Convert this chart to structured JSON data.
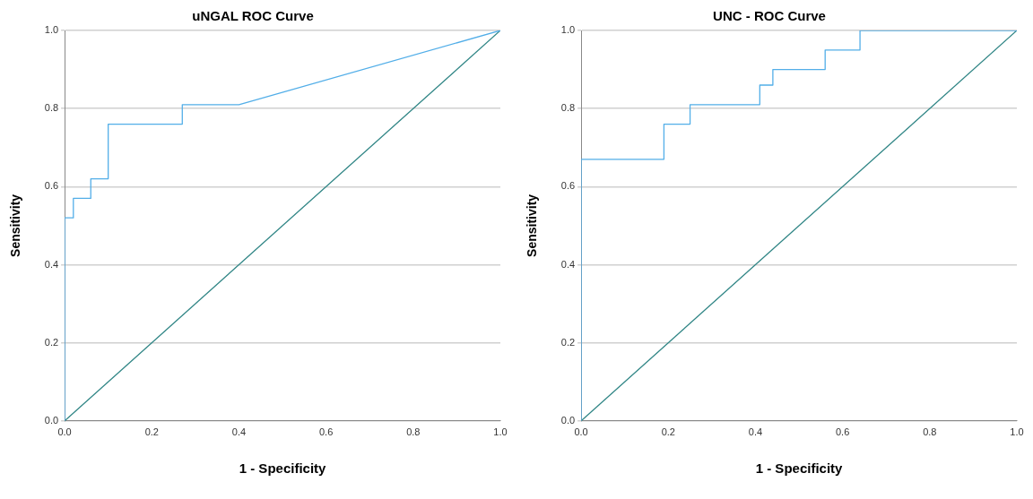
{
  "chart_data": [
    {
      "type": "line",
      "title": "uNGAL ROC Curve",
      "xlabel": "1 - Specificity",
      "ylabel": "Sensitivity",
      "xlim": [
        0,
        1
      ],
      "ylim": [
        0,
        1
      ],
      "xticks": [
        {
          "value": 0,
          "label": "0.0"
        },
        {
          "value": 0.2,
          "label": "0.2"
        },
        {
          "value": 0.4,
          "label": "0.4"
        },
        {
          "value": 0.6,
          "label": "0.6"
        },
        {
          "value": 0.8,
          "label": "0.8"
        },
        {
          "value": 1,
          "label": "1.0"
        }
      ],
      "yticks": [
        {
          "value": 0,
          "label": "0.0"
        },
        {
          "value": 0.2,
          "label": "0.2"
        },
        {
          "value": 0.4,
          "label": "0.4"
        },
        {
          "value": 0.6,
          "label": "0.6"
        },
        {
          "value": 0.8,
          "label": "0.8"
        },
        {
          "value": 1,
          "label": "1.0"
        }
      ],
      "grid": "y",
      "legend": false,
      "marker": "none",
      "line_style": "solid",
      "series": [
        {
          "color": "#52aee8",
          "x": [
            0,
            0,
            0.02,
            0.02,
            0.06,
            0.06,
            0.1,
            0.1,
            0.27,
            0.27,
            0.4,
            1
          ],
          "values": [
            0,
            0.52,
            0.52,
            0.57,
            0.57,
            0.62,
            0.62,
            0.76,
            0.76,
            0.81,
            0.81,
            1
          ]
        },
        {
          "color": "#2f8585",
          "x": [
            0,
            1
          ],
          "values": [
            0,
            1
          ]
        }
      ]
    },
    {
      "type": "line",
      "title": "UNC - ROC Curve",
      "xlabel": "1 - Specificity",
      "ylabel": "Sensitivity",
      "xlim": [
        0,
        1
      ],
      "ylim": [
        0,
        1
      ],
      "xticks": [
        {
          "value": 0,
          "label": "0.0"
        },
        {
          "value": 0.2,
          "label": "0.2"
        },
        {
          "value": 0.4,
          "label": "0.4"
        },
        {
          "value": 0.6,
          "label": "0.6"
        },
        {
          "value": 0.8,
          "label": "0.8"
        },
        {
          "value": 1,
          "label": "1.0"
        }
      ],
      "yticks": [
        {
          "value": 0,
          "label": "0.0"
        },
        {
          "value": 0.2,
          "label": "0.2"
        },
        {
          "value": 0.4,
          "label": "0.4"
        },
        {
          "value": 0.6,
          "label": "0.6"
        },
        {
          "value": 0.8,
          "label": "0.8"
        },
        {
          "value": 1,
          "label": "1.0"
        }
      ],
      "grid": "y",
      "legend": false,
      "marker": "none",
      "line_style": "solid",
      "series": [
        {
          "color": "#52aee8",
          "x": [
            0,
            0,
            0.19,
            0.19,
            0.25,
            0.25,
            0.41,
            0.41,
            0.44,
            0.44,
            0.56,
            0.56,
            0.64,
            0.64,
            1
          ],
          "values": [
            0,
            0.67,
            0.67,
            0.76,
            0.76,
            0.81,
            0.81,
            0.86,
            0.86,
            0.9,
            0.9,
            0.95,
            0.95,
            1,
            1
          ]
        },
        {
          "color": "#2f8585",
          "x": [
            0,
            1
          ],
          "values": [
            0,
            1
          ]
        }
      ]
    }
  ]
}
